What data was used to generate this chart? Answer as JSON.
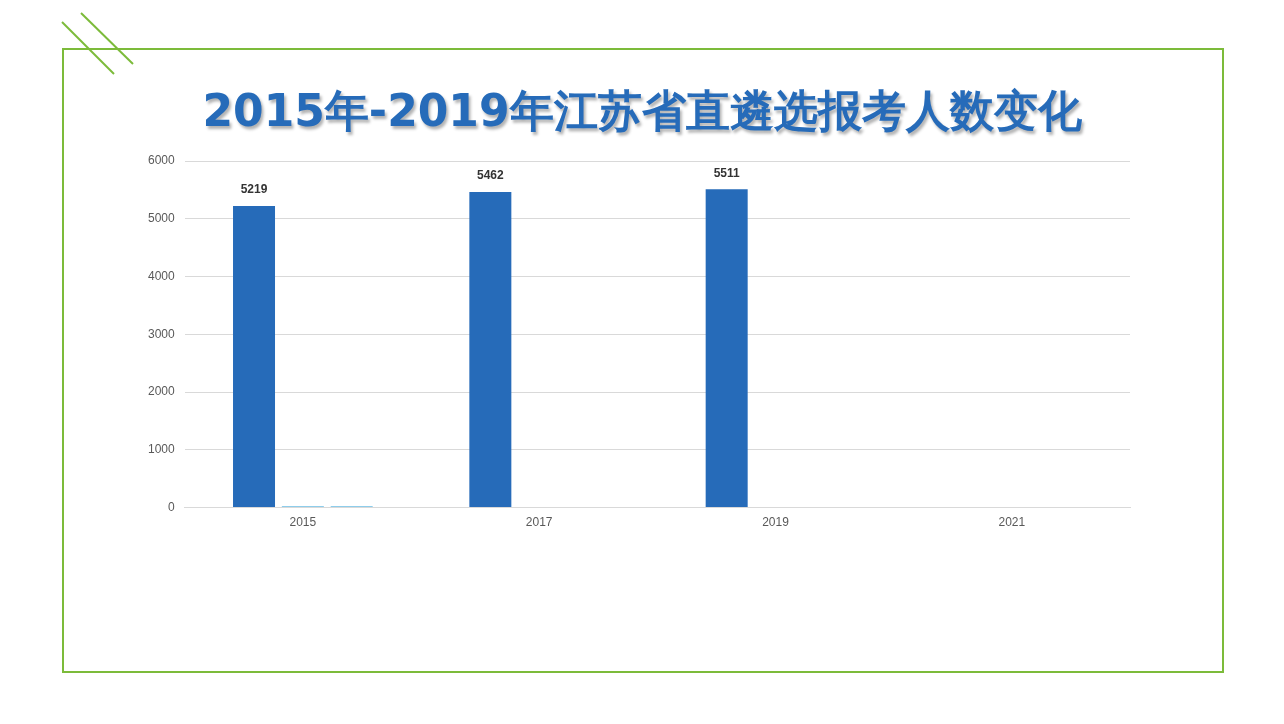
{
  "chart_data": {
    "type": "bar",
    "title": "2015年-2019年江苏省直遴选报考人数变化",
    "categories": [
      "2015",
      "2017",
      "2019",
      "2021"
    ],
    "series": [
      {
        "color": "#266bb9",
        "values": [
          5219,
          5462,
          5511,
          null
        ],
        "value_labels": [
          "5219",
          "5462",
          "5511",
          null
        ]
      },
      {
        "color": "#1f9bd7",
        "values": [
          20,
          null,
          null,
          null
        ]
      },
      {
        "color": "#1f9bd7",
        "values": [
          20,
          null,
          null,
          null
        ]
      }
    ],
    "ylim": [
      0,
      6000
    ],
    "yticks": [
      0,
      1000,
      2000,
      3000,
      4000,
      5000,
      6000
    ],
    "grid": "y",
    "legend": false
  }
}
